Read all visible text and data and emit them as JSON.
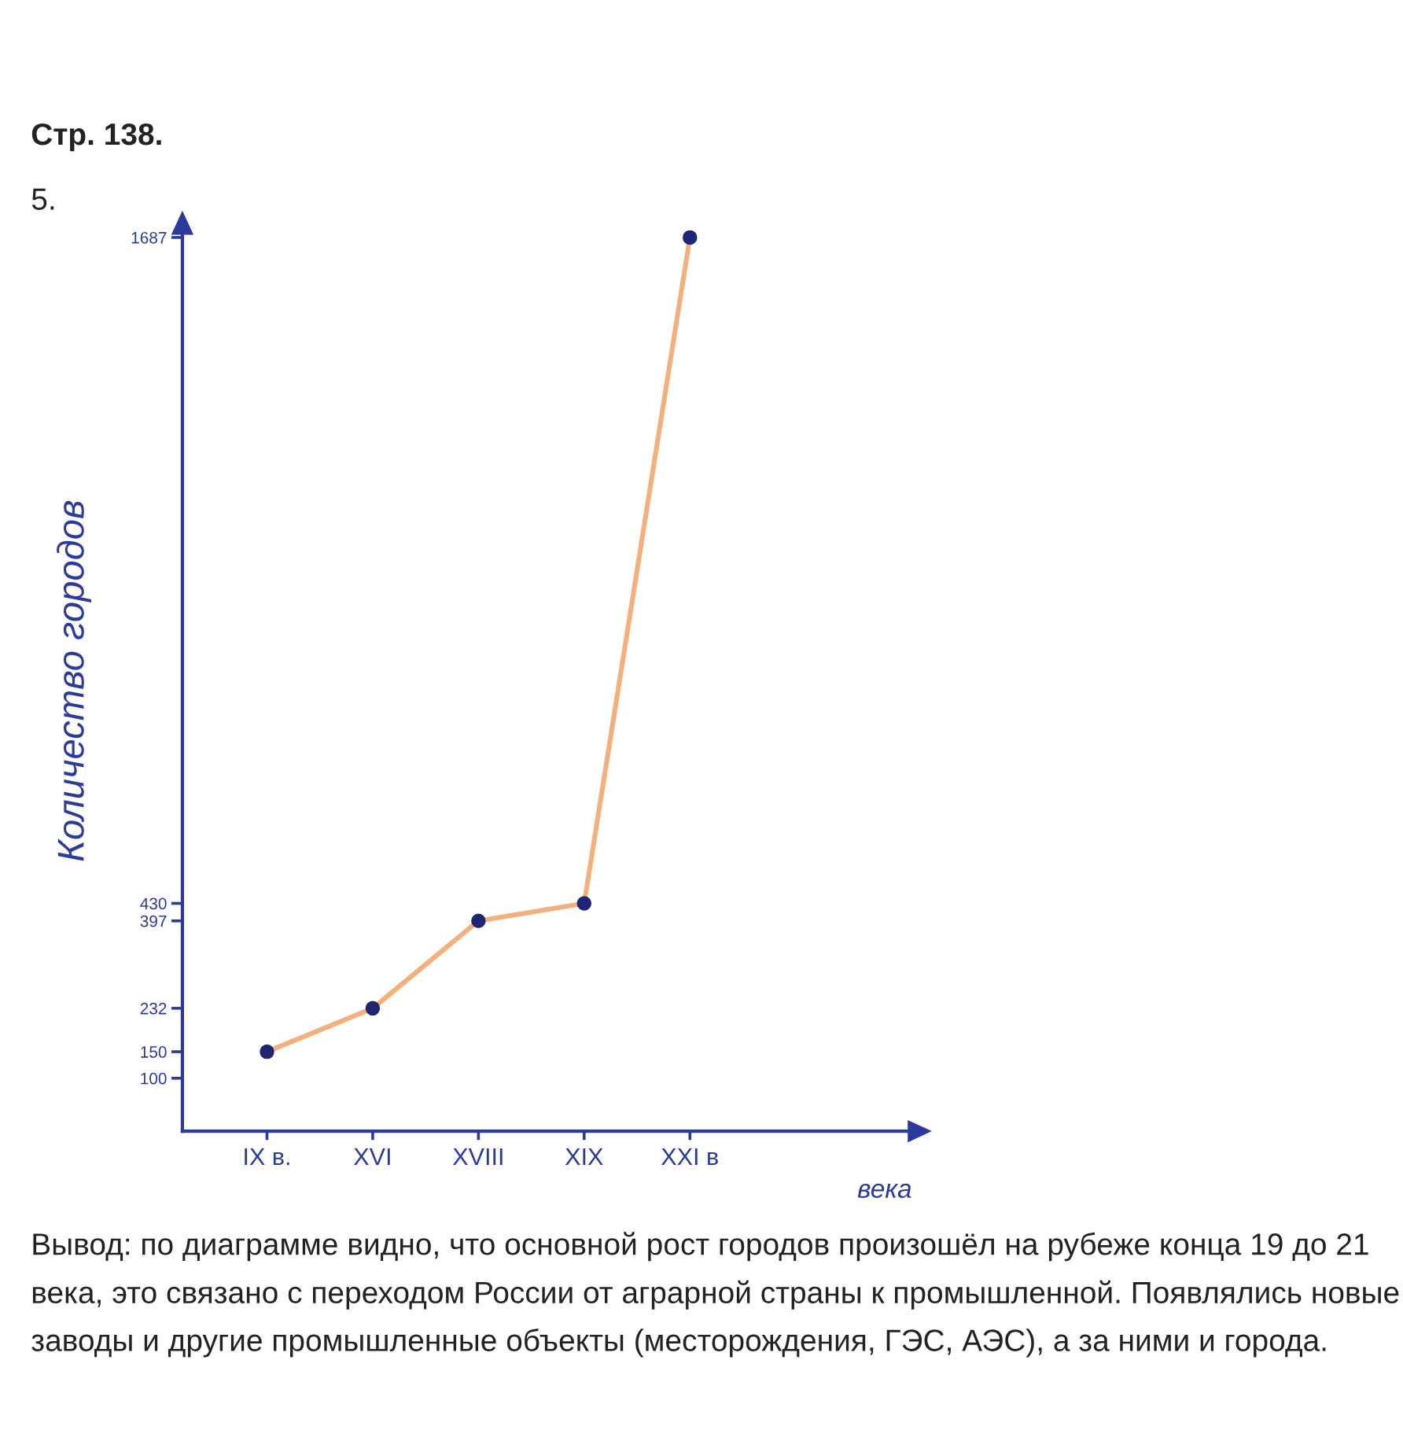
{
  "chart_data": {
    "type": "line",
    "title": "Стр. 138.",
    "subtitle": "5.",
    "xlabel": "века",
    "ylabel": "Количество городов",
    "categories": [
      "IX в.",
      "XVI",
      "XVIII",
      "XIX",
      "XXI в"
    ],
    "series": [
      {
        "color": "#f3b07c",
        "colors": [
          "#1e2672",
          "#1e2672",
          "#1e2672",
          "#1e2672",
          "#1e2672"
        ],
        "values": [
          150,
          232,
          397,
          430,
          1687
        ]
      }
    ],
    "marker": "circle",
    "line_style": "solid",
    "ylim": [
      0,
      1700
    ],
    "yticks": [
      100,
      150,
      232,
      397,
      430,
      1687
    ],
    "annotations": [
      "Вывод: по диаграмме видно, что основной рост городов произошёл на рубеже конца 19 до 21 века, это связано с переходом России от аграрной страны к промышленной. Появлялись новые заводы и другие промышленные объекты (месторождения, ГЭС, АЭС), а за ними и города."
    ]
  }
}
